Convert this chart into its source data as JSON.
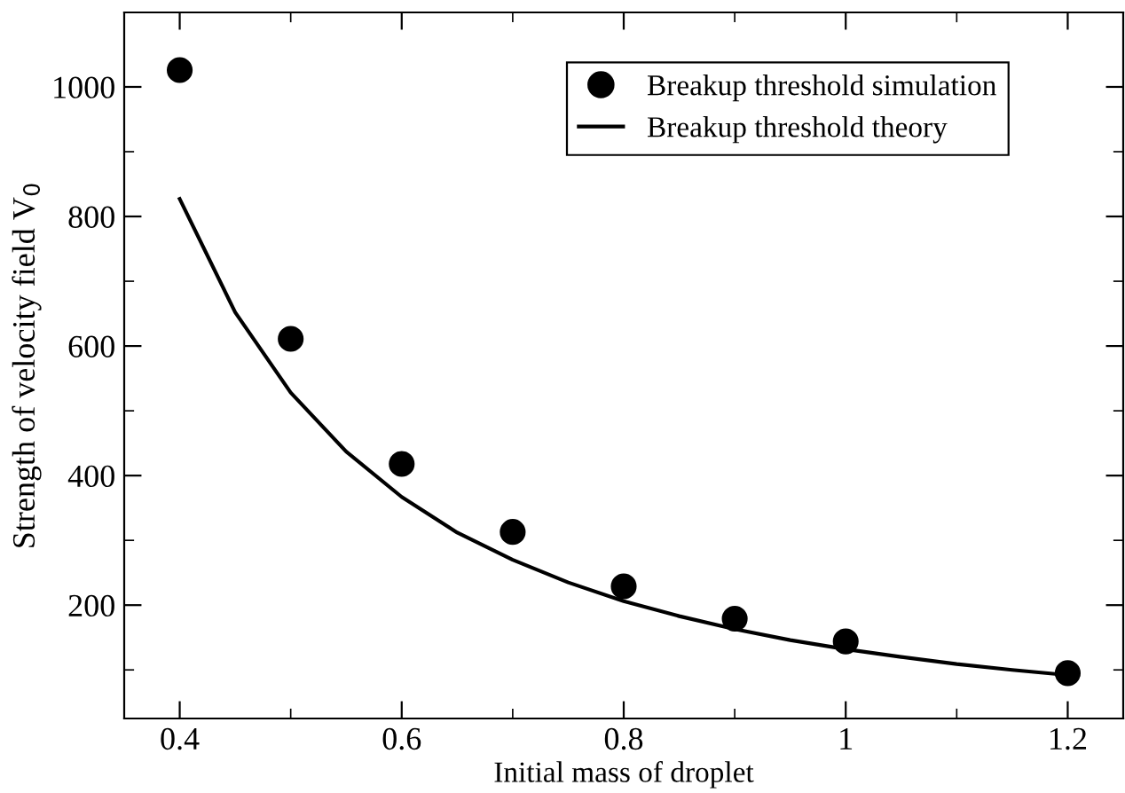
{
  "chart_data": {
    "type": "scatter",
    "xlabel": "Initial mass of droplet",
    "ylabel": "Strength of velocity field V$_{0}$",
    "xlim": [
      0.35,
      1.25
    ],
    "ylim": [
      25,
      1115
    ],
    "xticks": [
      0.4,
      {
        "value": 0.5,
        "label": null
      },
      0.6,
      {
        "value": 0.7,
        "label": null
      },
      0.8,
      {
        "value": 0.9,
        "label": null
      },
      1,
      {
        "value": 1.1,
        "label": null
      },
      1.2
    ],
    "yticks": [
      {
        "value": 100,
        "label": null
      },
      200,
      {
        "value": 300,
        "label": null
      },
      400,
      {
        "value": 500,
        "label": null
      },
      600,
      {
        "value": 700,
        "label": null
      },
      800,
      {
        "value": 900,
        "label": null
      },
      1000
    ],
    "legend": "top right",
    "grid": false,
    "series": [
      {
        "name": "Breakup threshold simulation",
        "marker": "circle",
        "color": "#000000",
        "x": [
          0.4,
          0.5,
          0.6,
          0.7,
          0.8,
          0.9,
          1.0,
          1.2
        ],
        "values": [
          1026,
          611,
          418,
          313,
          229,
          179,
          144,
          95
        ]
      },
      {
        "name": "Breakup threshold theory",
        "type": "line",
        "marker": "none",
        "line_style": "solid",
        "color": "#000000",
        "x": [
          0.4,
          0.45,
          0.5,
          0.55,
          0.6,
          0.65,
          0.7,
          0.75,
          0.8,
          0.85,
          0.9,
          0.95,
          1.0,
          1.05,
          1.1,
          1.15,
          1.2
        ],
        "values": [
          827,
          652,
          528,
          437,
          367,
          312,
          270,
          235,
          206,
          183,
          163,
          146,
          132,
          120,
          109,
          100,
          92
        ]
      }
    ]
  }
}
